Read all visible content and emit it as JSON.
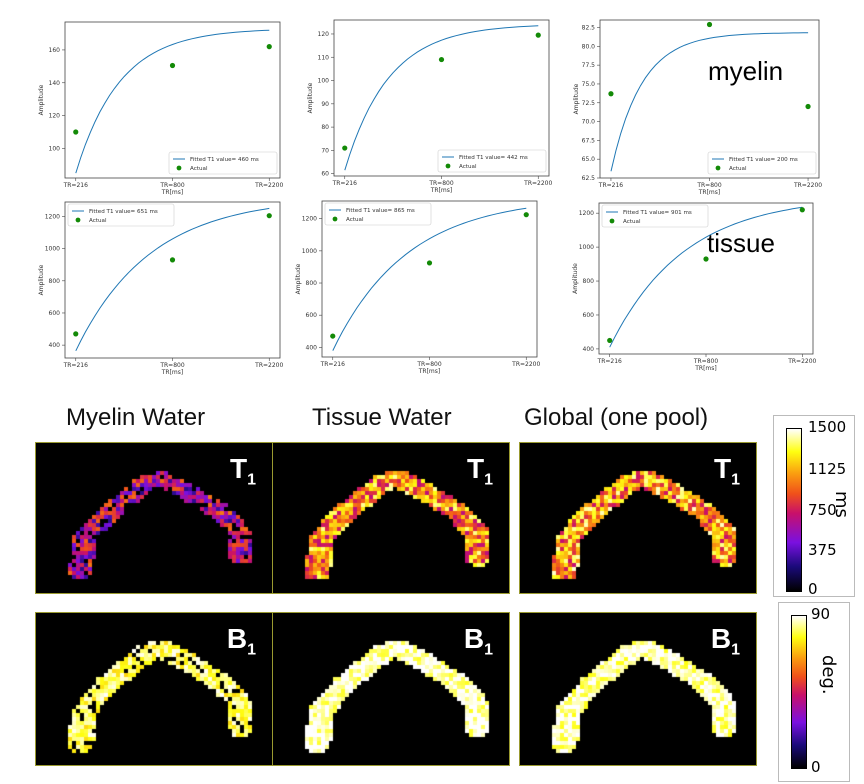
{
  "chart_data": [
    {
      "type": "line",
      "xlabel": "TR[ms]",
      "ylabel": "Amplitude",
      "categories": [
        "TR=216",
        "TR=800",
        "TR=2200"
      ],
      "yticks": [
        100,
        120,
        140,
        160
      ],
      "ylim": [
        82,
        177
      ],
      "fit_label": "Fitted T1 value= 460 ms",
      "actual_label": "Actual",
      "legend": "bottom-right",
      "fit": {
        "start": 85,
        "end": 172
      },
      "actual": [
        110,
        150.5,
        162
      ]
    },
    {
      "type": "line",
      "xlabel": "TR[ms]",
      "ylabel": "Amplitude",
      "categories": [
        "TR=216",
        "TR=800",
        "TR=2200"
      ],
      "yticks": [
        60,
        70,
        80,
        90,
        100,
        110,
        120
      ],
      "ylim": [
        59,
        126
      ],
      "fit_label": "Fitted T1 value= 442 ms",
      "actual_label": "Actual",
      "legend": "bottom-right",
      "fit": {
        "start": 61.5,
        "end": 123.5
      },
      "actual": [
        71,
        109,
        119.5
      ]
    },
    {
      "type": "line",
      "xlabel": "TR[ms]",
      "ylabel": "Amplitude",
      "categories": [
        "TR=216",
        "TR=800",
        "TR=2200"
      ],
      "yticks": [
        "62.5",
        "65.0",
        "67.5",
        "70.0",
        "72.5",
        "75.0",
        "77.5",
        "80.0",
        "82.5"
      ],
      "ylim": [
        62.5,
        83.5
      ],
      "fit_label": "Fitted T1 value= 200 ms",
      "actual_label": "Actual",
      "legend": "bottom-right",
      "fit": {
        "start": 63.4,
        "end": 81.8
      },
      "actual": [
        73.7,
        82.9,
        72
      ],
      "annotation": "myelin"
    },
    {
      "type": "line",
      "xlabel": "TR[ms]",
      "ylabel": "Amplitude",
      "categories": [
        "TR=216",
        "TR=800",
        "TR=2200"
      ],
      "yticks": [
        400,
        600,
        800,
        1000,
        1200
      ],
      "ylim": [
        320,
        1290
      ],
      "fit_label": "Fitted T1 value= 651 ms",
      "actual_label": "Actual",
      "legend": "top-left",
      "fit": {
        "start": 365,
        "end": 1250
      },
      "actual": [
        470,
        930,
        1205
      ]
    },
    {
      "type": "line",
      "xlabel": "TR[ms]",
      "ylabel": "Amplitude",
      "categories": [
        "TR=216",
        "TR=800",
        "TR=2200"
      ],
      "yticks": [
        400,
        600,
        800,
        1000,
        1200
      ],
      "ylim": [
        340,
        1310
      ],
      "fit_label": "Fitted T1 value= 865 ms",
      "actual_label": "Actual",
      "legend": "top-left",
      "fit": {
        "start": 380,
        "end": 1265
      },
      "actual": [
        470,
        925,
        1225
      ]
    },
    {
      "type": "line",
      "xlabel": "TR[ms]",
      "ylabel": "Amplitude",
      "categories": [
        "TR=216",
        "TR=800",
        "TR=2200"
      ],
      "yticks": [
        400,
        600,
        800,
        1000,
        1200
      ],
      "ylim": [
        370,
        1260
      ],
      "fit_label": "Fitted T1 value= 901 ms",
      "actual_label": "Actual",
      "legend": "top-left",
      "fit": {
        "start": 410,
        "end": 1235
      },
      "actual": [
        450,
        930,
        1220
      ],
      "annotation": "tissue"
    }
  ],
  "maps": {
    "titles": [
      "Myelin Water",
      "Tissue Water",
      "Global (one pool)"
    ],
    "t1_label": "T",
    "t1_sub": "1",
    "b1_label": "B",
    "b1_sub": "1",
    "t1_colorbar": {
      "ticks": [
        "1500",
        "1125",
        "750",
        "375",
        "0"
      ],
      "unit": "ms",
      "range": [
        0,
        1500
      ]
    },
    "b1_colorbar": {
      "ticks": [
        "90",
        "0"
      ],
      "unit": "deg.",
      "range": [
        0,
        90
      ]
    }
  },
  "colors": {
    "fit": "#1f77b4",
    "actual": "#138a07"
  }
}
